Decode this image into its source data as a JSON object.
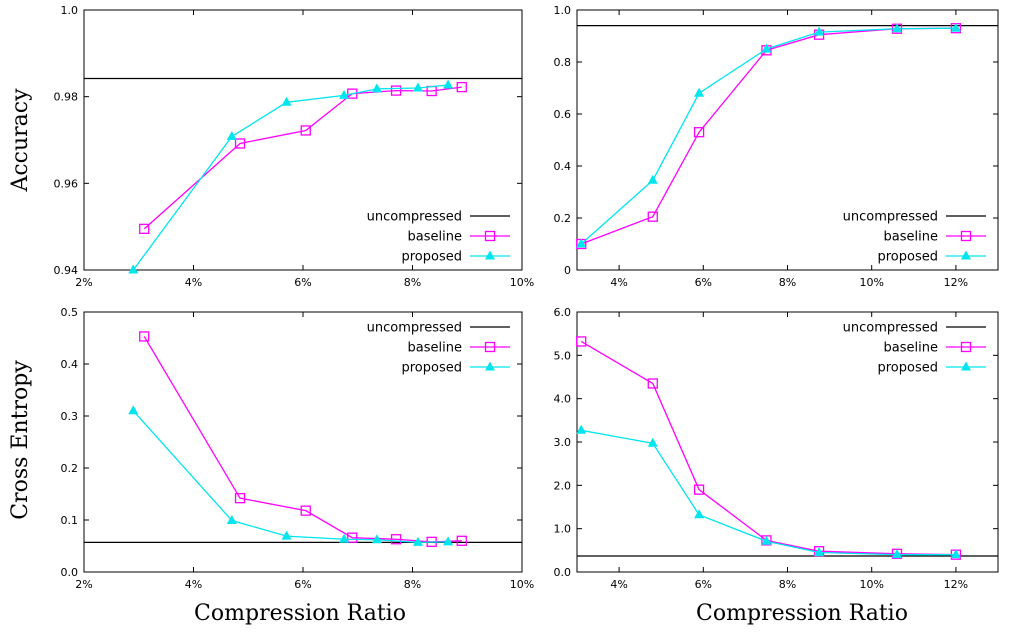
{
  "labels": {
    "ylabel_top": "Accuracy",
    "ylabel_bottom": "Cross Entropy",
    "xlabel_left": "Compression Ratio",
    "xlabel_right": "Compression Ratio"
  },
  "legend": [
    "uncompressed",
    "baseline",
    "proposed"
  ],
  "colors": {
    "uncompressed": "#000000",
    "baseline": "#ff00ff",
    "proposed": "#00e5ee"
  },
  "chart_data": [
    {
      "id": "top-left",
      "type": "line",
      "xlim": [
        2,
        10
      ],
      "ylim": [
        0.94,
        1.0
      ],
      "xticks": [
        2,
        4,
        6,
        8,
        10
      ],
      "xtick_labels": [
        "2%",
        "4%",
        "6%",
        "8%",
        "10%"
      ],
      "yticks": [
        0.94,
        0.96,
        0.98,
        1.0
      ],
      "ytick_labels": [
        "0.94",
        "0.96",
        "0.98",
        "1.0"
      ],
      "uncompressed": 0.9842,
      "series": [
        {
          "name": "baseline",
          "x": [
            3.1,
            4.85,
            6.05,
            6.9,
            7.7,
            8.35,
            8.9
          ],
          "y": [
            0.9495,
            0.9692,
            0.9722,
            0.9807,
            0.9814,
            0.9813,
            0.9822
          ]
        },
        {
          "name": "proposed",
          "x": [
            2.9,
            4.7,
            5.7,
            6.75,
            7.35,
            8.1,
            8.65
          ],
          "y": [
            0.94,
            0.9708,
            0.9787,
            0.9803,
            0.9818,
            0.982,
            0.9827
          ]
        }
      ],
      "legend_position": "bottom-right"
    },
    {
      "id": "top-right",
      "type": "line",
      "xlim": [
        3,
        13
      ],
      "ylim": [
        0,
        1.0
      ],
      "xticks": [
        4,
        6,
        8,
        10,
        12
      ],
      "xtick_labels": [
        "4%",
        "6%",
        "8%",
        "10%",
        "12%"
      ],
      "yticks": [
        0,
        0.2,
        0.4,
        0.6,
        0.8,
        1.0
      ],
      "ytick_labels": [
        "0",
        "0.2",
        "0.4",
        "0.6",
        "0.8",
        "1.0"
      ],
      "uncompressed": 0.94,
      "series": [
        {
          "name": "baseline",
          "x": [
            3.1,
            4.8,
            5.9,
            7.5,
            8.75,
            10.6,
            12.0
          ],
          "y": [
            0.1,
            0.205,
            0.53,
            0.845,
            0.905,
            0.928,
            0.93
          ]
        },
        {
          "name": "proposed",
          "x": [
            3.1,
            4.8,
            5.9,
            7.5,
            8.75,
            10.6,
            12.0
          ],
          "y": [
            0.1,
            0.345,
            0.68,
            0.85,
            0.915,
            0.928,
            0.93
          ]
        }
      ],
      "legend_position": "bottom-right"
    },
    {
      "id": "bottom-left",
      "type": "line",
      "xlim": [
        2,
        10
      ],
      "ylim": [
        0,
        0.5
      ],
      "xticks": [
        2,
        4,
        6,
        8,
        10
      ],
      "xtick_labels": [
        "2%",
        "4%",
        "6%",
        "8%",
        "10%"
      ],
      "yticks": [
        0,
        0.1,
        0.2,
        0.3,
        0.4,
        0.5
      ],
      "ytick_labels": [
        "0.0",
        "0.1",
        "0.2",
        "0.3",
        "0.4",
        "0.5"
      ],
      "uncompressed": 0.057,
      "series": [
        {
          "name": "baseline",
          "x": [
            3.1,
            4.85,
            6.05,
            6.9,
            7.7,
            8.35,
            8.9
          ],
          "y": [
            0.453,
            0.142,
            0.118,
            0.066,
            0.063,
            0.058,
            0.06
          ]
        },
        {
          "name": "proposed",
          "x": [
            2.9,
            4.7,
            5.7,
            6.75,
            7.35,
            8.1,
            8.65
          ],
          "y": [
            0.31,
            0.099,
            0.069,
            0.063,
            0.062,
            0.057,
            0.058
          ]
        }
      ],
      "legend_position": "top-right"
    },
    {
      "id": "bottom-right",
      "type": "line",
      "xlim": [
        3,
        13
      ],
      "ylim": [
        0,
        6.0
      ],
      "xticks": [
        4,
        6,
        8,
        10,
        12
      ],
      "xtick_labels": [
        "4%",
        "6%",
        "8%",
        "10%",
        "12%"
      ],
      "yticks": [
        0,
        1,
        2,
        3,
        4,
        5,
        6
      ],
      "ytick_labels": [
        "0.0",
        "1.0",
        "2.0",
        "3.0",
        "4.0",
        "5.0",
        "6.0"
      ],
      "uncompressed": 0.37,
      "series": [
        {
          "name": "baseline",
          "x": [
            3.1,
            4.8,
            5.9,
            7.5,
            8.75,
            10.6,
            12.0
          ],
          "y": [
            5.32,
            4.35,
            1.9,
            0.73,
            0.48,
            0.42,
            0.4
          ]
        },
        {
          "name": "proposed",
          "x": [
            3.1,
            4.8,
            5.9,
            7.5,
            8.75,
            10.6,
            12.0
          ],
          "y": [
            3.27,
            2.97,
            1.32,
            0.71,
            0.45,
            0.4,
            0.4
          ]
        }
      ],
      "legend_position": "top-right"
    }
  ]
}
